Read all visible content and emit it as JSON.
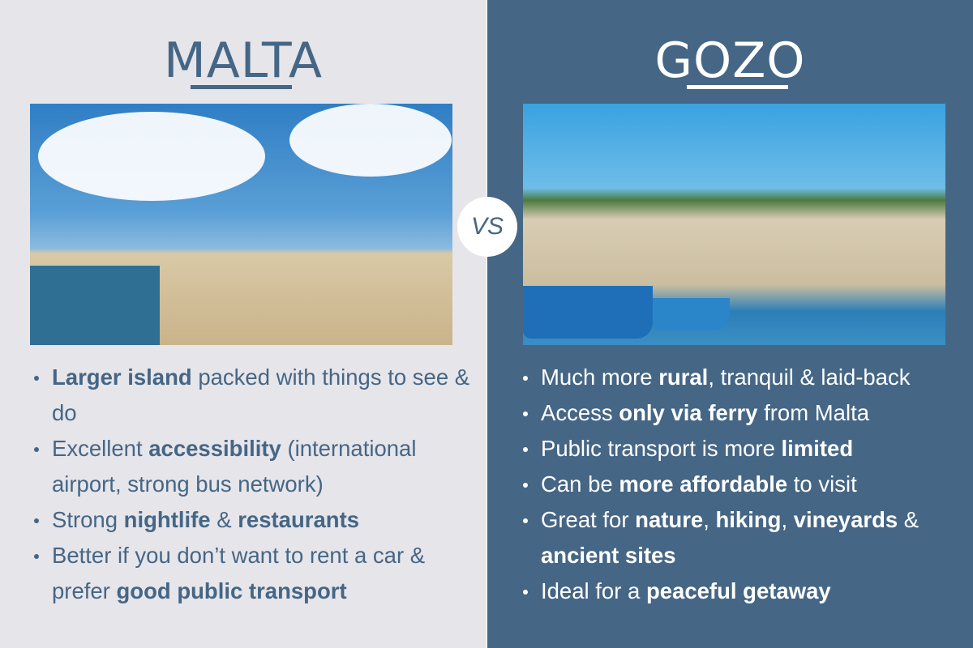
{
  "vs_label": "VS",
  "colors": {
    "left_bg": "#e6e5ea",
    "right_bg": "#456685",
    "accent": "#456685"
  },
  "malta": {
    "title": "MALTA",
    "bullets": [
      [
        {
          "t": "Larger island",
          "b": true
        },
        {
          "t": " packed with things to see & do"
        }
      ],
      [
        {
          "t": "Excellent "
        },
        {
          "t": "accessibility",
          "b": true
        },
        {
          "t": " (international airport, strong bus network)"
        }
      ],
      [
        {
          "t": "Strong "
        },
        {
          "t": "nightlife",
          "b": true
        },
        {
          "t": " & "
        },
        {
          "t": "restaurants",
          "b": true
        }
      ],
      [
        {
          "t": "Better if you don’t want to rent a car & prefer "
        },
        {
          "t": "good public transport",
          "b": true
        }
      ]
    ]
  },
  "gozo": {
    "title": "GOZO",
    "bullets": [
      [
        {
          "t": "Much more "
        },
        {
          "t": "rural",
          "b": true
        },
        {
          "t": ", tranquil & laid-back"
        }
      ],
      [
        {
          "t": "Access "
        },
        {
          "t": "only via ferry",
          "b": true
        },
        {
          "t": " from Malta"
        }
      ],
      [
        {
          "t": "Public transport is more "
        },
        {
          "t": "limited",
          "b": true
        }
      ],
      [
        {
          "t": "Can be "
        },
        {
          "t": "more affordable",
          "b": true
        },
        {
          "t": " to visit"
        }
      ],
      [
        {
          "t": "Great for "
        },
        {
          "t": "nature",
          "b": true
        },
        {
          "t": ", "
        },
        {
          "t": "hiking",
          "b": true
        },
        {
          "t": ", "
        },
        {
          "t": "vineyards",
          "b": true
        },
        {
          "t": " & "
        },
        {
          "t": "ancient sites",
          "b": true
        }
      ],
      [
        {
          "t": "Ideal for a "
        },
        {
          "t": "peaceful getaway",
          "b": true
        }
      ]
    ]
  }
}
